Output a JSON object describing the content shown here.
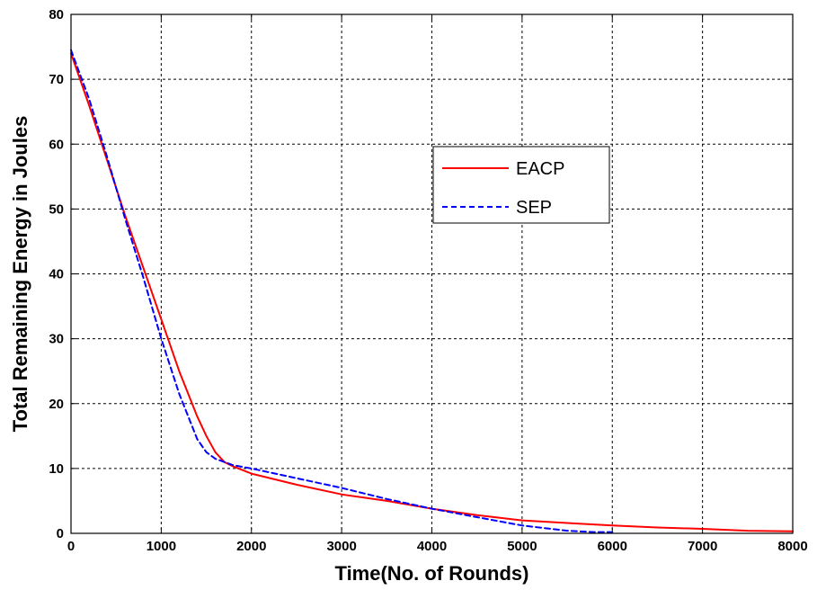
{
  "chart_data": {
    "type": "line",
    "title": "",
    "xlabel": "Time(No. of Rounds)",
    "ylabel": "Total Remaining Energy in Joules",
    "xlim": [
      0,
      8000
    ],
    "ylim": [
      0,
      80
    ],
    "xticks": [
      0,
      1000,
      2000,
      3000,
      4000,
      5000,
      6000,
      7000,
      8000
    ],
    "yticks": [
      0,
      10,
      20,
      30,
      40,
      50,
      60,
      70,
      80
    ],
    "grid": true,
    "legend_position": "upper-right-center",
    "series": [
      {
        "name": "EACP",
        "color": "#ff0000",
        "dash": "solid",
        "x": [
          0,
          200,
          400,
          600,
          800,
          1000,
          1200,
          1400,
          1500,
          1600,
          1700,
          1800,
          2000,
          2500,
          3000,
          3500,
          4000,
          4500,
          5000,
          5500,
          6000,
          6500,
          7000,
          7500,
          8000
        ],
        "y": [
          74,
          66,
          57.5,
          49,
          41,
          33,
          25,
          18,
          15,
          12.5,
          11,
          10.3,
          9.2,
          7.5,
          6,
          5,
          3.8,
          2.8,
          2,
          1.6,
          1.2,
          0.9,
          0.7,
          0.4,
          0.3
        ]
      },
      {
        "name": "SEP",
        "color": "#0000ff",
        "dash": "dashed",
        "x": [
          0,
          200,
          400,
          600,
          800,
          1000,
          1200,
          1400,
          1500,
          1600,
          1700,
          1800,
          2000,
          2500,
          3000,
          3500,
          4000,
          4500,
          5000,
          5500,
          5800,
          6000
        ],
        "y": [
          74.5,
          67,
          58,
          48.5,
          39.5,
          30,
          21.5,
          14.5,
          12.5,
          11.5,
          11,
          10.5,
          10,
          8.5,
          7,
          5.3,
          3.8,
          2.5,
          1.2,
          0.4,
          0.2,
          0.2
        ]
      }
    ]
  }
}
